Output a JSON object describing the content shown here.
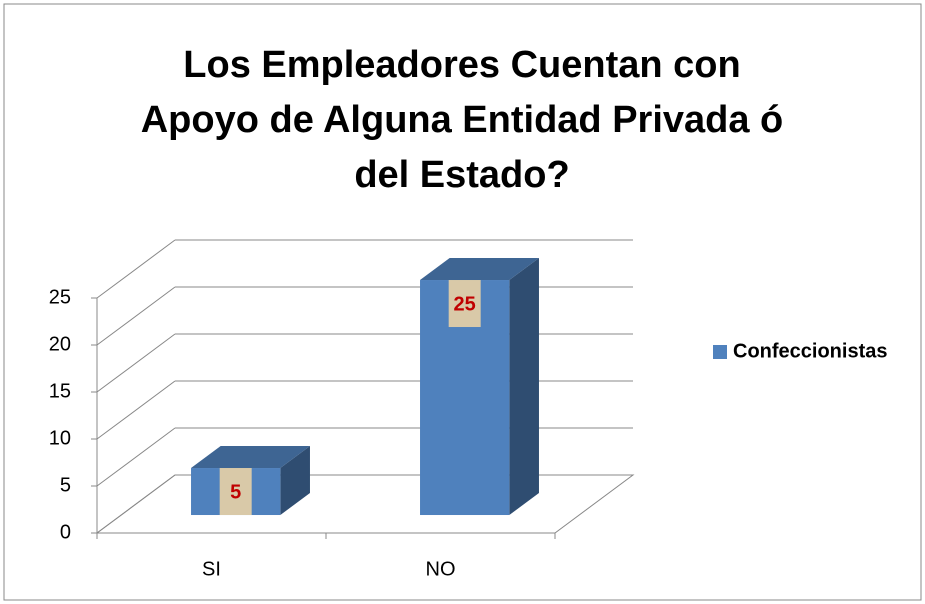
{
  "chart_data": {
    "type": "bar3d",
    "title": "Los Empleadores Cuentan con Apoyo de Alguna Entidad Privada ó del Estado?",
    "categories": [
      "SI",
      "NO"
    ],
    "series": [
      {
        "name": "Confeccionistas",
        "color": "#4f81bd",
        "values": [
          5,
          25
        ]
      }
    ],
    "ylim": [
      0,
      25
    ],
    "yticks": [
      0,
      5,
      10,
      15,
      20,
      25
    ],
    "grid": true,
    "legend": "right"
  }
}
